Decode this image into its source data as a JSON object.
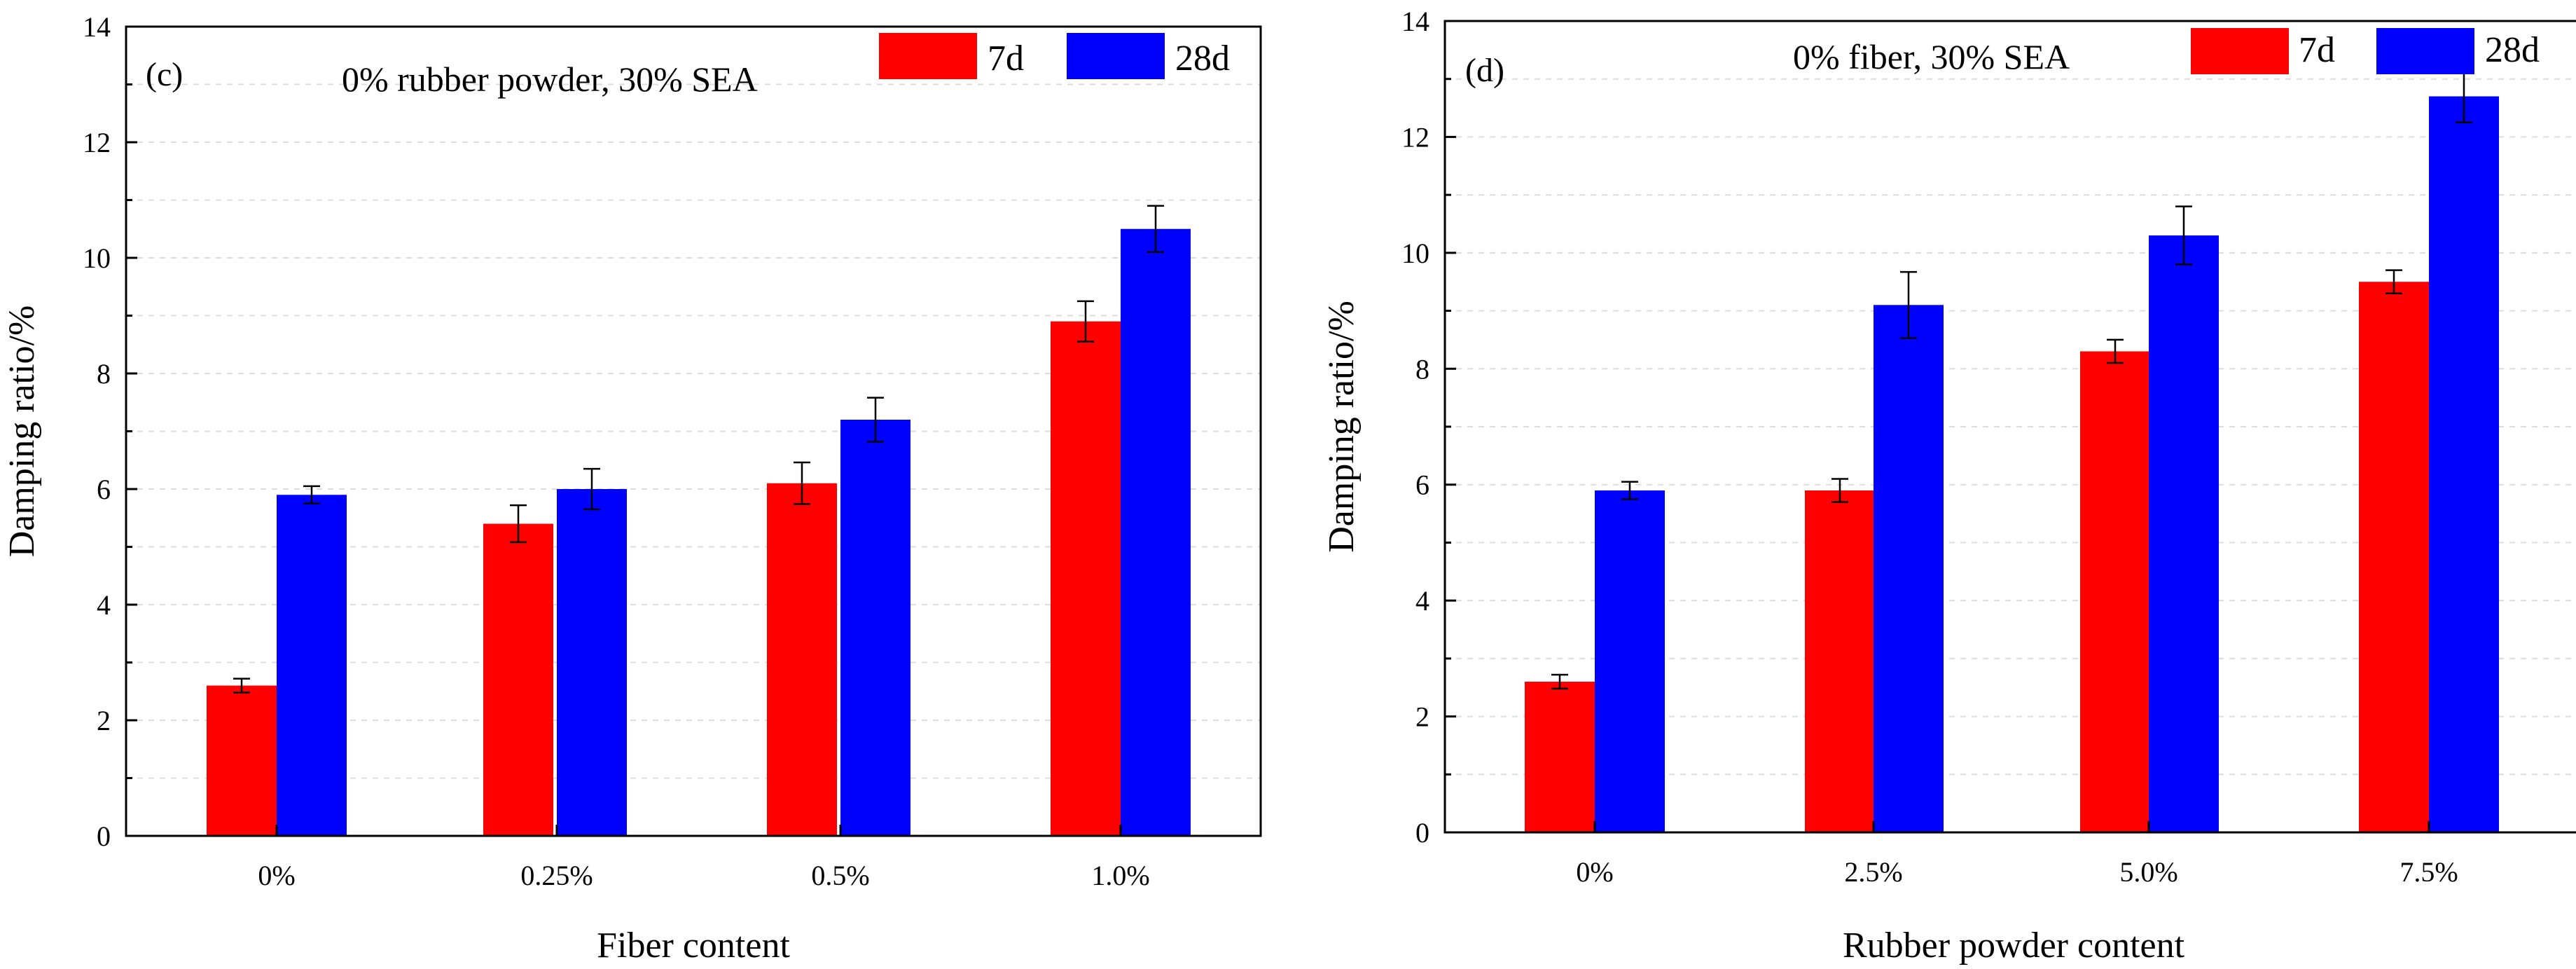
{
  "chart_data": [
    {
      "type": "bar",
      "panel_label": "(c)",
      "title": "0% rubber powder, 30% SEA",
      "xlabel": "Fiber content",
      "ylabel": "Damping ratio/%",
      "categories": [
        "0%",
        "0.25%",
        "0.5%",
        "1.0%"
      ],
      "series": [
        {
          "name": "7d",
          "color": "#ff0000",
          "values": [
            2.6,
            5.4,
            6.1,
            8.9
          ],
          "errors": [
            0.12,
            0.32,
            0.36,
            0.35
          ]
        },
        {
          "name": "28d",
          "color": "#0000ff",
          "values": [
            5.9,
            6.0,
            7.2,
            10.5
          ],
          "errors": [
            0.15,
            0.35,
            0.38,
            0.4
          ]
        }
      ],
      "ylim": [
        0,
        14
      ],
      "yticks": [
        0,
        2,
        4,
        6,
        8,
        10,
        12,
        14
      ],
      "grid": true,
      "legend_position": "top-right"
    },
    {
      "type": "bar",
      "panel_label": "(d)",
      "title": "0% fiber, 30% SEA",
      "xlabel": "Rubber powder content",
      "ylabel": "Damping ratio/%",
      "categories": [
        "0%",
        "2.5%",
        "5.0%",
        "7.5%"
      ],
      "series": [
        {
          "name": "7d",
          "color": "#ff0000",
          "values": [
            2.6,
            5.9,
            8.3,
            9.5
          ],
          "errors": [
            0.12,
            0.2,
            0.2,
            0.2
          ]
        },
        {
          "name": "28d",
          "color": "#0000ff",
          "values": [
            5.9,
            9.1,
            10.3,
            12.7
          ],
          "errors": [
            0.15,
            0.57,
            0.5,
            0.45
          ]
        }
      ],
      "ylim": [
        0,
        14
      ],
      "yticks": [
        0,
        2,
        4,
        6,
        8,
        10,
        12,
        14
      ],
      "grid": true,
      "legend_position": "top-right"
    }
  ]
}
